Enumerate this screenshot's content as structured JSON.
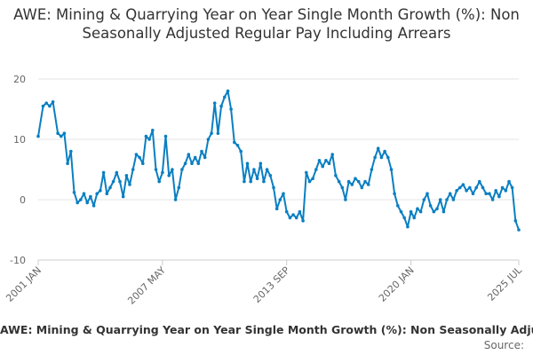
{
  "chart_data": {
    "type": "line",
    "title": "AWE: Mining & Quarrying Year on Year Single Month Growth (%): Non Seasonally Adjusted Regular Pay Including Arrears",
    "xlabel": "",
    "ylabel": "",
    "ylim": [
      -10,
      20
    ],
    "yticks": [
      -10,
      0,
      10,
      20
    ],
    "x_range": [
      "2001-01",
      "2025-07"
    ],
    "xticks": [
      {
        "label": "2001 JAN",
        "date": "2001-01"
      },
      {
        "label": "2007 MAY",
        "date": "2007-05"
      },
      {
        "label": "2013 SEP",
        "date": "2013-09"
      },
      {
        "label": "2020 JAN",
        "date": "2020-01"
      },
      {
        "label": "2025 JUL",
        "date": "2025-07"
      }
    ],
    "grid": "horizontal",
    "legend_position": "bottom",
    "series": [
      {
        "name": "AWE: Mining & Quarrying Year on Year Single Month Growth (%): Non Seasonally Adjusted Regular Pay Including Arrears",
        "color": "#0a7fc2",
        "points": [
          [
            "2001-01",
            10.5
          ],
          [
            "2001-04",
            15.5
          ],
          [
            "2001-06",
            16
          ],
          [
            "2001-08",
            15.5
          ],
          [
            "2001-10",
            16.2
          ],
          [
            "2002-01",
            11
          ],
          [
            "2002-03",
            10.5
          ],
          [
            "2002-05",
            11
          ],
          [
            "2002-07",
            6
          ],
          [
            "2002-09",
            8
          ],
          [
            "2002-11",
            1.2
          ],
          [
            "2003-01",
            -0.5
          ],
          [
            "2003-03",
            0
          ],
          [
            "2003-05",
            1
          ],
          [
            "2003-07",
            -0.5
          ],
          [
            "2003-09",
            0.5
          ],
          [
            "2003-11",
            -1
          ],
          [
            "2004-01",
            1
          ],
          [
            "2004-03",
            1.5
          ],
          [
            "2004-05",
            4.5
          ],
          [
            "2004-07",
            1
          ],
          [
            "2004-09",
            2
          ],
          [
            "2004-11",
            3
          ],
          [
            "2005-01",
            4.5
          ],
          [
            "2005-03",
            3
          ],
          [
            "2005-05",
            0.5
          ],
          [
            "2005-07",
            4
          ],
          [
            "2005-09",
            2.5
          ],
          [
            "2005-11",
            5
          ],
          [
            "2006-01",
            7.5
          ],
          [
            "2006-03",
            7
          ],
          [
            "2006-05",
            6
          ],
          [
            "2006-07",
            10.5
          ],
          [
            "2006-09",
            10
          ],
          [
            "2006-11",
            11.5
          ],
          [
            "2007-01",
            5
          ],
          [
            "2007-03",
            3
          ],
          [
            "2007-05",
            4.5
          ],
          [
            "2007-07",
            10.5
          ],
          [
            "2007-09",
            4
          ],
          [
            "2007-11",
            5
          ],
          [
            "2008-01",
            0
          ],
          [
            "2008-03",
            2
          ],
          [
            "2008-05",
            5
          ],
          [
            "2008-07",
            6
          ],
          [
            "2008-09",
            7.5
          ],
          [
            "2008-11",
            6
          ],
          [
            "2009-01",
            7
          ],
          [
            "2009-03",
            6
          ],
          [
            "2009-05",
            8
          ],
          [
            "2009-07",
            7
          ],
          [
            "2009-09",
            10
          ],
          [
            "2009-11",
            11
          ],
          [
            "2010-01",
            16
          ],
          [
            "2010-03",
            11
          ],
          [
            "2010-05",
            15.5
          ],
          [
            "2010-07",
            17
          ],
          [
            "2010-09",
            18
          ],
          [
            "2010-11",
            15
          ],
          [
            "2011-01",
            9.5
          ],
          [
            "2011-03",
            9
          ],
          [
            "2011-05",
            8
          ],
          [
            "2011-07",
            3
          ],
          [
            "2011-09",
            6
          ],
          [
            "2011-11",
            3
          ],
          [
            "2012-01",
            5
          ],
          [
            "2012-03",
            3.5
          ],
          [
            "2012-05",
            6
          ],
          [
            "2012-07",
            3
          ],
          [
            "2012-09",
            5
          ],
          [
            "2012-11",
            4
          ],
          [
            "2013-01",
            2
          ],
          [
            "2013-03",
            -1.5
          ],
          [
            "2013-05",
            0
          ],
          [
            "2013-07",
            1
          ],
          [
            "2013-09",
            -2
          ],
          [
            "2013-11",
            -3
          ],
          [
            "2014-01",
            -2.5
          ],
          [
            "2014-03",
            -3
          ],
          [
            "2014-05",
            -2
          ],
          [
            "2014-07",
            -3.5
          ],
          [
            "2014-09",
            4.5
          ],
          [
            "2014-11",
            3
          ],
          [
            "2015-01",
            3.5
          ],
          [
            "2015-03",
            5
          ],
          [
            "2015-05",
            6.5
          ],
          [
            "2015-07",
            5.5
          ],
          [
            "2015-09",
            6.5
          ],
          [
            "2015-11",
            6
          ],
          [
            "2016-01",
            7.5
          ],
          [
            "2016-03",
            4
          ],
          [
            "2016-05",
            3
          ],
          [
            "2016-07",
            2
          ],
          [
            "2016-09",
            0
          ],
          [
            "2016-11",
            3
          ],
          [
            "2017-01",
            2.5
          ],
          [
            "2017-03",
            3.5
          ],
          [
            "2017-05",
            3
          ],
          [
            "2017-07",
            2
          ],
          [
            "2017-09",
            3
          ],
          [
            "2017-11",
            2.5
          ],
          [
            "2018-01",
            5
          ],
          [
            "2018-03",
            7
          ],
          [
            "2018-05",
            8.5
          ],
          [
            "2018-07",
            7
          ],
          [
            "2018-09",
            8
          ],
          [
            "2018-11",
            7
          ],
          [
            "2019-01",
            5
          ],
          [
            "2019-03",
            1
          ],
          [
            "2019-05",
            -1
          ],
          [
            "2019-07",
            -2
          ],
          [
            "2019-09",
            -3
          ],
          [
            "2019-11",
            -4.5
          ],
          [
            "2020-01",
            -2
          ],
          [
            "2020-03",
            -3
          ],
          [
            "2020-05",
            -1.5
          ],
          [
            "2020-07",
            -2
          ],
          [
            "2020-09",
            0
          ],
          [
            "2020-11",
            1
          ],
          [
            "2021-01",
            -1
          ],
          [
            "2021-03",
            -2
          ],
          [
            "2021-05",
            -1.5
          ],
          [
            "2021-07",
            0
          ],
          [
            "2021-09",
            -2
          ],
          [
            "2021-11",
            0
          ],
          [
            "2022-01",
            1
          ],
          [
            "2022-03",
            0
          ],
          [
            "2022-05",
            1.5
          ],
          [
            "2022-07",
            2
          ],
          [
            "2022-09",
            2.5
          ],
          [
            "2022-11",
            1.5
          ],
          [
            "2023-01",
            2
          ],
          [
            "2023-03",
            1
          ],
          [
            "2023-05",
            2
          ],
          [
            "2023-07",
            3
          ],
          [
            "2023-09",
            2
          ],
          [
            "2023-11",
            1
          ],
          [
            "2024-01",
            1
          ],
          [
            "2024-03",
            0
          ],
          [
            "2024-05",
            1.5
          ],
          [
            "2024-07",
            0.5
          ],
          [
            "2024-09",
            2
          ],
          [
            "2024-11",
            1.5
          ],
          [
            "2025-01",
            3
          ],
          [
            "2025-03",
            2
          ],
          [
            "2025-05",
            -3.5
          ],
          [
            "2025-07",
            -5
          ]
        ]
      }
    ]
  },
  "legend_label": "AWE: Mining & Quarrying Year on Year Single Month Growth (%): Non Seasonally Adjusted Regular Pay Including Arrears",
  "source_label": "Source:"
}
